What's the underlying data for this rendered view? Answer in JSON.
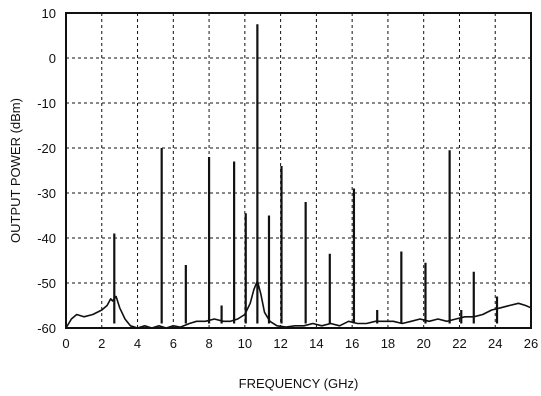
{
  "chart_data": {
    "type": "line",
    "title": "",
    "xlabel": "FREQUENCY (GHz)",
    "ylabel": "OUTPUT POWER (dBm)",
    "xlim": [
      0,
      26
    ],
    "ylim": [
      -60,
      10
    ],
    "xticks": [
      0,
      2,
      4,
      6,
      8,
      10,
      12,
      14,
      16,
      18,
      20,
      22,
      24,
      26
    ],
    "yticks": [
      10,
      0,
      -10,
      -20,
      -30,
      -40,
      -50,
      -60
    ],
    "grid": true,
    "spurs": [
      {
        "x": 2.7,
        "y": -39
      },
      {
        "x": 5.35,
        "y": -20
      },
      {
        "x": 6.7,
        "y": -46
      },
      {
        "x": 8.0,
        "y": -22
      },
      {
        "x": 8.7,
        "y": -55
      },
      {
        "x": 9.4,
        "y": -23
      },
      {
        "x": 10.05,
        "y": -34.5
      },
      {
        "x": 10.7,
        "y": 7.5
      },
      {
        "x": 11.35,
        "y": -35
      },
      {
        "x": 12.05,
        "y": -24
      },
      {
        "x": 13.4,
        "y": -32
      },
      {
        "x": 14.75,
        "y": -43.5
      },
      {
        "x": 16.1,
        "y": -29
      },
      {
        "x": 17.4,
        "y": -56
      },
      {
        "x": 18.75,
        "y": -43
      },
      {
        "x": 20.1,
        "y": -45.5
      },
      {
        "x": 21.45,
        "y": -20.5
      },
      {
        "x": 22.1,
        "y": -56
      },
      {
        "x": 22.8,
        "y": -47.5
      },
      {
        "x": 24.1,
        "y": -53
      }
    ],
    "noise_floor": [
      [
        0,
        -60
      ],
      [
        0.3,
        -58
      ],
      [
        0.6,
        -57
      ],
      [
        1.0,
        -57.5
      ],
      [
        1.5,
        -57
      ],
      [
        2.0,
        -56
      ],
      [
        2.3,
        -55
      ],
      [
        2.5,
        -53.5
      ],
      [
        2.6,
        -54
      ],
      [
        2.8,
        -53
      ],
      [
        3.0,
        -55.5
      ],
      [
        3.3,
        -58
      ],
      [
        3.6,
        -59.5
      ],
      [
        4.0,
        -60
      ],
      [
        4.4,
        -59.5
      ],
      [
        4.8,
        -60
      ],
      [
        5.2,
        -59.5
      ],
      [
        5.6,
        -60
      ],
      [
        6.0,
        -59.5
      ],
      [
        6.4,
        -59.8
      ],
      [
        6.9,
        -59
      ],
      [
        7.3,
        -58.5
      ],
      [
        7.8,
        -58.5
      ],
      [
        8.3,
        -58
      ],
      [
        8.8,
        -58.5
      ],
      [
        9.2,
        -58.5
      ],
      [
        9.6,
        -58
      ],
      [
        10.0,
        -57
      ],
      [
        10.3,
        -54.5
      ],
      [
        10.5,
        -51.5
      ],
      [
        10.7,
        -49.5
      ],
      [
        10.9,
        -52.5
      ],
      [
        11.1,
        -56.5
      ],
      [
        11.4,
        -58.5
      ],
      [
        11.8,
        -59.5
      ],
      [
        12.3,
        -59.8
      ],
      [
        12.8,
        -59.5
      ],
      [
        13.3,
        -59.5
      ],
      [
        13.8,
        -59
      ],
      [
        14.3,
        -59.5
      ],
      [
        14.8,
        -59
      ],
      [
        15.3,
        -59.5
      ],
      [
        15.8,
        -58.5
      ],
      [
        16.3,
        -59
      ],
      [
        16.8,
        -59
      ],
      [
        17.3,
        -58.5
      ],
      [
        17.8,
        -58.5
      ],
      [
        18.3,
        -58.5
      ],
      [
        18.8,
        -59
      ],
      [
        19.3,
        -58.5
      ],
      [
        19.8,
        -58
      ],
      [
        20.3,
        -58.5
      ],
      [
        20.8,
        -58
      ],
      [
        21.3,
        -58.5
      ],
      [
        21.8,
        -58
      ],
      [
        22.3,
        -57.5
      ],
      [
        22.8,
        -57.5
      ],
      [
        23.3,
        -57
      ],
      [
        23.8,
        -56
      ],
      [
        24.3,
        -55.5
      ],
      [
        24.8,
        -55
      ],
      [
        25.3,
        -54.5
      ],
      [
        25.7,
        -55
      ],
      [
        26,
        -55.5
      ]
    ]
  }
}
